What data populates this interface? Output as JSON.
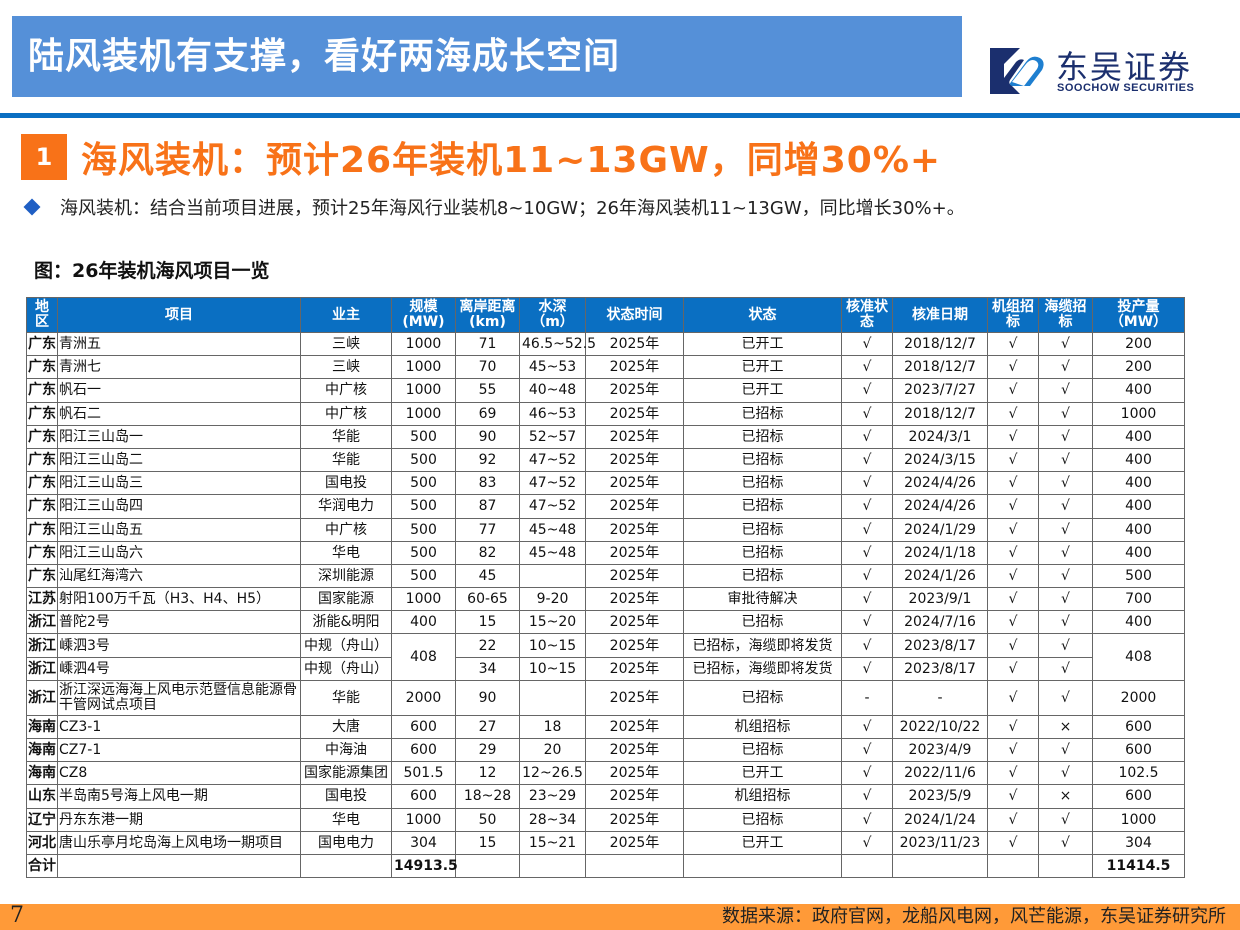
{
  "header": {
    "title": "陆风装机有支撑，看好两海成长空间",
    "logo": {
      "cn": "东吴证券",
      "en": "SOOCHOW SECURITIES",
      "icon": "soochow-logo-icon"
    },
    "colors": {
      "title_bg": "#5590d8",
      "rule": "#0a6fc2",
      "accent": "#f87218",
      "footer": "#ff9a38",
      "table_header": "#0a6fc2"
    }
  },
  "section": {
    "number": "1",
    "title": "海风装机：预计26年装机11~13GW，同增30%+"
  },
  "bullet": {
    "icon": "diamond-bullet-icon",
    "text": "海风装机：结合当前项目进展，预计25年海风行业装机8~10GW；26年海风装机11~13GW，同比增长30%+。"
  },
  "figure": {
    "title": "图：26年装机海风项目一览"
  },
  "table": {
    "columns": [
      "地区",
      "项目",
      "业主",
      "规模(MW)",
      "离岸距离(km)",
      "水深（m）",
      "状态时间",
      "状态",
      "核准状态",
      "核准日期",
      "机组招标",
      "海缆招标",
      "投产量（MW）"
    ],
    "rows": [
      {
        "region": "广东",
        "project": "青洲五",
        "owner": "三峡",
        "scale": "1000",
        "distance": "71",
        "depth": "46.5~52.5",
        "time": "2025年",
        "status": "已开工",
        "approved": "√",
        "date": "2018/12/7",
        "turbine": "√",
        "cable": "√",
        "output": "200"
      },
      {
        "region": "广东",
        "project": "青洲七",
        "owner": "三峡",
        "scale": "1000",
        "distance": "70",
        "depth": "45~53",
        "time": "2025年",
        "status": "已开工",
        "approved": "√",
        "date": "2018/12/7",
        "turbine": "√",
        "cable": "√",
        "output": "200"
      },
      {
        "region": "广东",
        "project": "帆石一",
        "owner": "中广核",
        "scale": "1000",
        "distance": "55",
        "depth": "40~48",
        "time": "2025年",
        "status": "已开工",
        "approved": "√",
        "date": "2023/7/27",
        "turbine": "√",
        "cable": "√",
        "output": "400"
      },
      {
        "region": "广东",
        "project": "帆石二",
        "owner": "中广核",
        "scale": "1000",
        "distance": "69",
        "depth": "46~53",
        "time": "2025年",
        "status": "已招标",
        "approved": "√",
        "date": "2018/12/7",
        "turbine": "√",
        "cable": "√",
        "output": "1000"
      },
      {
        "region": "广东",
        "project": "阳江三山岛一",
        "owner": "华能",
        "scale": "500",
        "distance": "90",
        "depth": "52~57",
        "time": "2025年",
        "status": "已招标",
        "approved": "√",
        "date": "2024/3/1",
        "turbine": "√",
        "cable": "√",
        "output": "400"
      },
      {
        "region": "广东",
        "project": "阳江三山岛二",
        "owner": "华能",
        "scale": "500",
        "distance": "92",
        "depth": "47~52",
        "time": "2025年",
        "status": "已招标",
        "approved": "√",
        "date": "2024/3/15",
        "turbine": "√",
        "cable": "√",
        "output": "400"
      },
      {
        "region": "广东",
        "project": "阳江三山岛三",
        "owner": "国电投",
        "scale": "500",
        "distance": "83",
        "depth": "47~52",
        "time": "2025年",
        "status": "已招标",
        "approved": "√",
        "date": "2024/4/26",
        "turbine": "√",
        "cable": "√",
        "output": "400"
      },
      {
        "region": "广东",
        "project": "阳江三山岛四",
        "owner": "华润电力",
        "scale": "500",
        "distance": "87",
        "depth": "47~52",
        "time": "2025年",
        "status": "已招标",
        "approved": "√",
        "date": "2024/4/26",
        "turbine": "√",
        "cable": "√",
        "output": "400"
      },
      {
        "region": "广东",
        "project": "阳江三山岛五",
        "owner": "中广核",
        "scale": "500",
        "distance": "77",
        "depth": "45~48",
        "time": "2025年",
        "status": "已招标",
        "approved": "√",
        "date": "2024/1/29",
        "turbine": "√",
        "cable": "√",
        "output": "400"
      },
      {
        "region": "广东",
        "project": "阳江三山岛六",
        "owner": "华电",
        "scale": "500",
        "distance": "82",
        "depth": "45~48",
        "time": "2025年",
        "status": "已招标",
        "approved": "√",
        "date": "2024/1/18",
        "turbine": "√",
        "cable": "√",
        "output": "400"
      },
      {
        "region": "广东",
        "project": "汕尾红海湾六",
        "owner": "深圳能源",
        "scale": "500",
        "distance": "45",
        "depth": "",
        "time": "2025年",
        "status": "已招标",
        "approved": "√",
        "date": "2024/1/26",
        "turbine": "√",
        "cable": "√",
        "output": "500"
      },
      {
        "region": "江苏",
        "project": "射阳100万千瓦（H3、H4、H5）",
        "owner": "国家能源",
        "scale": "1000",
        "distance": "60-65",
        "depth": "9-20",
        "time": "2025年",
        "status": "审批待解决",
        "approved": "√",
        "date": "2023/9/1",
        "turbine": "√",
        "cable": "√",
        "output": "700"
      },
      {
        "region": "浙江",
        "project": "普陀2号",
        "owner": "浙能&明阳",
        "scale": "400",
        "distance": "15",
        "depth": "15~20",
        "time": "2025年",
        "status": "已招标",
        "approved": "√",
        "date": "2024/7/16",
        "turbine": "√",
        "cable": "√",
        "output": "400"
      },
      {
        "region": "浙江",
        "project": "嵊泗3号",
        "owner": "中规（舟山）",
        "scale": "408",
        "distance": "22",
        "depth": "10~15",
        "time": "2025年",
        "status": "已招标，海缆即将发货",
        "approved": "√",
        "date": "2023/8/17",
        "turbine": "√",
        "cable": "√",
        "output": "408"
      },
      {
        "region": "浙江",
        "project": "嵊泗4号",
        "owner": "中规（舟山）",
        "scale": "",
        "distance": "34",
        "depth": "10~15",
        "time": "2025年",
        "status": "已招标，海缆即将发货",
        "approved": "√",
        "date": "2023/8/17",
        "turbine": "√",
        "cable": "√",
        "output": ""
      },
      {
        "region": "浙江",
        "project": "浙江深远海海上风电示范暨信息能源骨干管网试点项目",
        "owner": "华能",
        "scale": "2000",
        "distance": "90",
        "depth": "",
        "time": "2025年",
        "status": "已招标",
        "approved": "-",
        "date": "-",
        "turbine": "√",
        "cable": "√",
        "output": "2000"
      },
      {
        "region": "海南",
        "project": "CZ3-1",
        "owner": "大唐",
        "scale": "600",
        "distance": "27",
        "depth": "18",
        "time": "2025年",
        "status": "机组招标",
        "approved": "√",
        "date": "2022/10/22",
        "turbine": "√",
        "cable": "×",
        "output": "600"
      },
      {
        "region": "海南",
        "project": "CZ7-1",
        "owner": "中海油",
        "scale": "600",
        "distance": "29",
        "depth": "20",
        "time": "2025年",
        "status": "已招标",
        "approved": "√",
        "date": "2023/4/9",
        "turbine": "√",
        "cable": "√",
        "output": "600"
      },
      {
        "region": "海南",
        "project": "CZ8",
        "owner": "国家能源集团",
        "scale": "501.5",
        "distance": "12",
        "depth": "12~26.5",
        "time": "2025年",
        "status": "已开工",
        "approved": "√",
        "date": "2022/11/6",
        "turbine": "√",
        "cable": "√",
        "output": "102.5"
      },
      {
        "region": "山东",
        "project": "半岛南5号海上风电一期",
        "owner": "国电投",
        "scale": "600",
        "distance": "18~28",
        "depth": "23~29",
        "time": "2025年",
        "status": "机组招标",
        "approved": "√",
        "date": "2023/5/9",
        "turbine": "√",
        "cable": "×",
        "output": "600"
      },
      {
        "region": "辽宁",
        "project": "丹东东港一期",
        "owner": "华电",
        "scale": "1000",
        "distance": "50",
        "depth": "28~34",
        "time": "2025年",
        "status": "已招标",
        "approved": "√",
        "date": "2024/1/24",
        "turbine": "√",
        "cable": "√",
        "output": "1000"
      },
      {
        "region": "河北",
        "project": "唐山乐亭月坨岛海上风电场一期项目",
        "owner": "国电电力",
        "scale": "304",
        "distance": "15",
        "depth": "15~21",
        "time": "2025年",
        "status": "已开工",
        "approved": "√",
        "date": "2023/11/23",
        "turbine": "√",
        "cable": "√",
        "output": "304"
      }
    ],
    "total": {
      "label": "合计",
      "scale": "14913.5",
      "output": "11414.5"
    }
  },
  "footer": {
    "page": "7",
    "source": "数据来源：政府官网，龙船风电网，风芒能源，东吴证券研究所"
  }
}
